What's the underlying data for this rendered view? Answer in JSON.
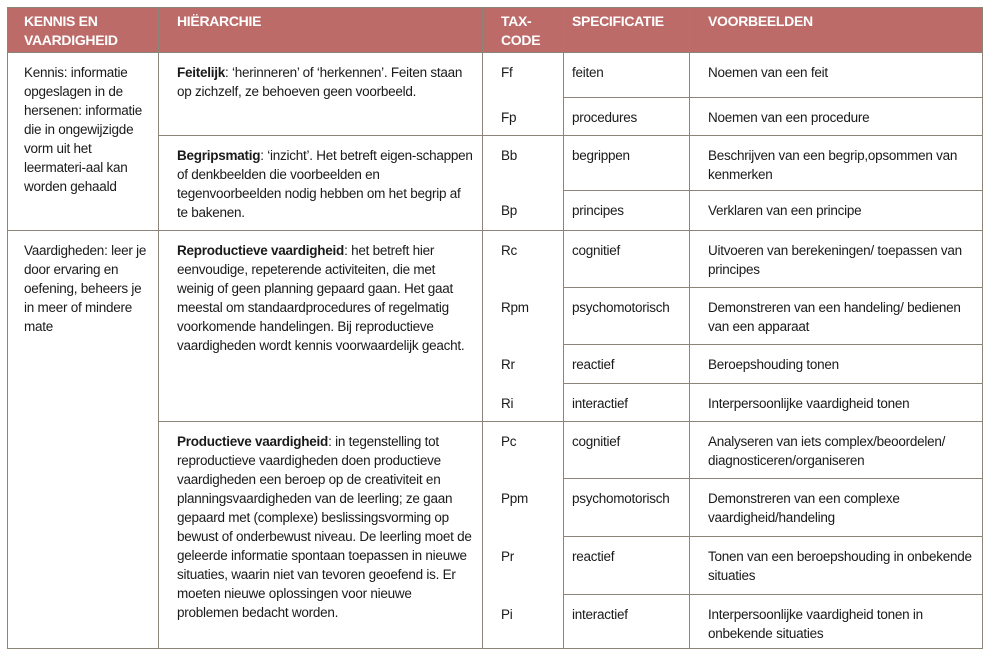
{
  "colors": {
    "header_bg": "#bd6b69",
    "border": "#8c8478"
  },
  "headers": [
    "KENNIS EN VAARDIGHEID",
    "HIËRARCHIE",
    "TAX-CODE",
    "SPECIFICATIE",
    "VOORBEELDEN"
  ],
  "headers_lines": {
    "h0a": "KENNIS EN",
    "h0b": "VAARDIGHEID",
    "h2a": "TAX-",
    "h2b": "CODE"
  },
  "categories": [
    {
      "text": "Kennis: informatie opgeslagen in de hersenen: informatie die in ongewijzigde vorm uit het leermateri-aal kan worden gehaald"
    },
    {
      "text": "Vaardigheden: leer je door ervaring en oefening, beheers je in meer of mindere mate"
    }
  ],
  "hierarchy": [
    {
      "term": "Feitelijk",
      "rest": ": ‘herinneren’ of ‘herkennen’. Feiten staan op zichzelf, ze behoeven geen voorbeeld."
    },
    {
      "term": "Begripsmatig",
      "rest": ": ‘inzicht’. Het betreft eigen-schappen of denkbeelden die voorbeelden en tegenvoorbeelden nodig hebben om het begrip af te bakenen."
    },
    {
      "term": "Reproductieve vaardigheid",
      "rest": ": het betreft hier eenvoudige, repeterende activiteiten, die met weinig of geen planning gepaard gaan. Het gaat meestal om standaardprocedures of regelmatig voorkomende handelingen. Bij reproductieve vaardigheden wordt kennis voorwaardelijk geacht."
    },
    {
      "term": "Productieve vaardigheid",
      "rest": ": in tegenstelling tot reproductieve vaardigheden doen productieve vaardigheden een beroep op de creativiteit en planningsvaardigheden van de leerling; ze gaan gepaard met (complexe) beslissingsvorming op bewust of onderbewust niveau. De leerling moet de geleerde informatie spontaan toepassen in nieuwe situaties, waarin niet van tevoren geoefend is. Er moeten nieuwe oplossingen voor nieuwe problemen bedacht worden."
    }
  ],
  "rows": [
    {
      "code": "Ff",
      "spec": "feiten",
      "example": "Noemen van een feit"
    },
    {
      "code": "Fp",
      "spec": "procedures",
      "example": "Noemen van een procedure"
    },
    {
      "code": "Bb",
      "spec": "begrippen",
      "example": "Beschrijven van een begrip,opsommen van kenmerken"
    },
    {
      "code": "Bp",
      "spec": "principes",
      "example": "Verklaren van een principe"
    },
    {
      "code": "Rc",
      "spec": "cognitief",
      "example": "Uitvoeren van berekeningen/ toepassen van principes"
    },
    {
      "code": "Rpm",
      "spec": "psychomotorisch",
      "example": "Demonstreren van een handeling/ bedienen van een apparaat"
    },
    {
      "code": "Rr",
      "spec": "reactief",
      "example": "Beroepshouding tonen"
    },
    {
      "code": "Ri",
      "spec": "interactief",
      "example": "Interpersoonlijke vaardigheid tonen"
    },
    {
      "code": "Pc",
      "spec": "cognitief",
      "example": "Analyseren van iets complex/beoordelen/ diagnosticeren/organiseren"
    },
    {
      "code": "Ppm",
      "spec": "psychomotorisch",
      "example": "Demonstreren van een complexe vaardigheid/handeling"
    },
    {
      "code": "Pr",
      "spec": "reactief",
      "example": "Tonen van een beroepshouding in onbekende situaties"
    },
    {
      "code": "Pi",
      "spec": "interactief",
      "example": "Interpersoonlijke vaardigheid tonen in onbekende situaties"
    }
  ]
}
